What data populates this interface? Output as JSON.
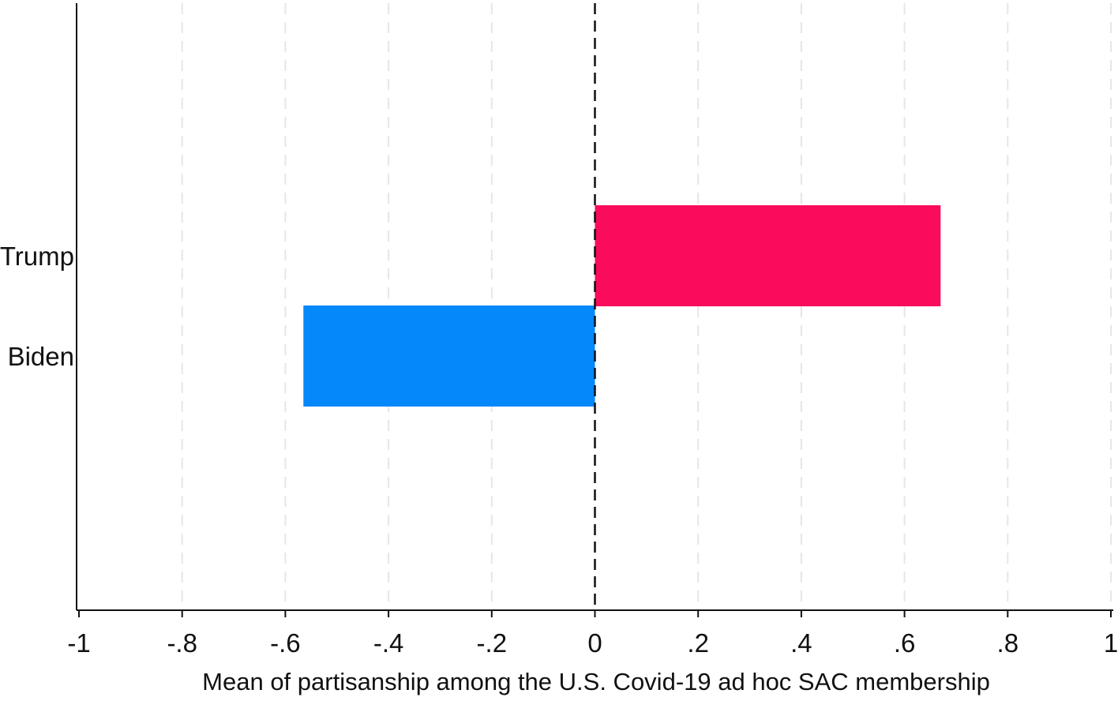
{
  "chart_data": {
    "type": "bar",
    "orientation": "horizontal",
    "categories": [
      "Trump",
      "Biden"
    ],
    "values": [
      0.67,
      -0.565
    ],
    "colors": [
      "#f80c5b",
      "#0588fa"
    ],
    "xlabel": "Mean of partisanship among the U.S. Covid-19 ad hoc SAC membership",
    "ylabel": "",
    "xlim": [
      -1,
      1
    ],
    "xticks": [
      -1,
      -0.8,
      -0.6,
      -0.4,
      -0.2,
      0,
      0.2,
      0.4,
      0.6,
      0.8,
      1
    ],
    "xtick_labels": [
      "-1",
      "-.8",
      "-.6",
      "-.4",
      "-.2",
      "0",
      ".2",
      ".4",
      ".6",
      ".8",
      "1"
    ],
    "grid": "vertical dashed",
    "reference_line": 0,
    "legend": "none"
  }
}
